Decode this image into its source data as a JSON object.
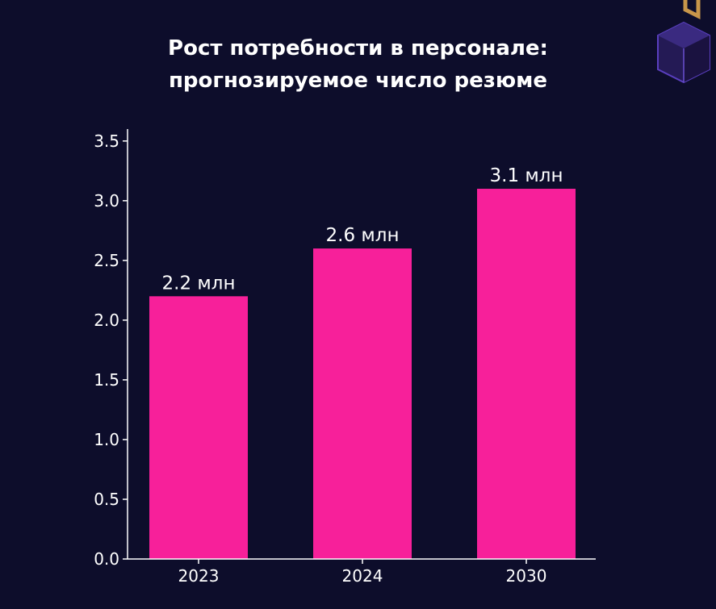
{
  "colors": {
    "background": "#0d0d2b",
    "bar": "#f7209a",
    "axis": "#ffffff",
    "text": "#ffffff"
  },
  "decoration": {
    "icon": "cube-logo-icon"
  },
  "chart_data": {
    "type": "bar",
    "title_lines": [
      "Рост потребности в персонале:",
      "прогнозируемое число резюме"
    ],
    "xlabel": "",
    "ylabel": "",
    "categories": [
      "2023",
      "2024",
      "2030"
    ],
    "values": [
      2.2,
      2.6,
      3.1
    ],
    "value_labels": [
      "2.2 млн",
      "2.6 млн",
      "3.1 млн"
    ],
    "yticks": [
      "0.0",
      "0.5",
      "1.0",
      "1.5",
      "2.0",
      "2.5",
      "3.0",
      "3.5"
    ],
    "ylim": [
      0,
      3.6
    ],
    "grid": false,
    "legend": "none"
  }
}
